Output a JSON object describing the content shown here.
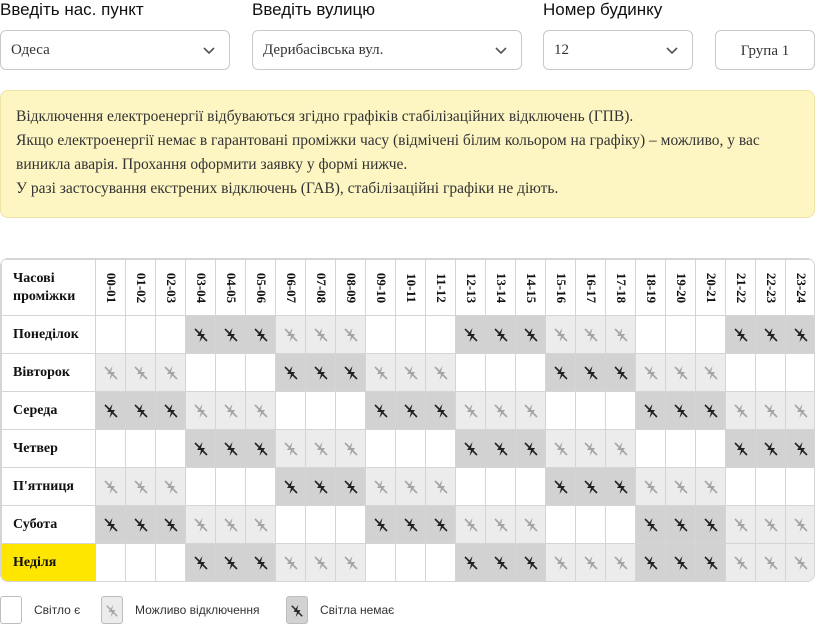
{
  "form": {
    "city_label": "Введіть нас. пункт",
    "city_value": "Одеса",
    "street_label": "Введіть вулицю",
    "street_value": "Дерибасівська вул.",
    "house_label": "Номер будинку",
    "house_value": "12",
    "group_button": "Група 1"
  },
  "notice": {
    "lines": [
      "Відключення електроенергії відбуваються згідно графіків стабілізаційних відключень (ГПВ).",
      "Якщо електроенергії немає в гарантовані проміжки часу (відмічені білим кольором на графіку) – можливо, у вас виникла аварія. Прохання оформити заявку у формі нижче.",
      "У разі застосування екстрених відключень (ГАВ), стабілізаційні графіки не діють."
    ]
  },
  "schedule": {
    "corner_label": "Часові проміжки",
    "hours": [
      "00-01",
      "01-02",
      "02-03",
      "03-04",
      "04-05",
      "05-06",
      "06-07",
      "07-08",
      "08-09",
      "09-10",
      "10-11",
      "11-12",
      "12-13",
      "13-14",
      "14-15",
      "15-16",
      "16-17",
      "17-18",
      "18-19",
      "19-20",
      "20-21",
      "21-22",
      "22-23",
      "23-24"
    ],
    "today_index": 6,
    "days": [
      {
        "name": "Понеділок",
        "states": [
          "yes",
          "yes",
          "yes",
          "no",
          "no",
          "no",
          "maybe",
          "maybe",
          "maybe",
          "yes",
          "yes",
          "yes",
          "no",
          "no",
          "no",
          "maybe",
          "maybe",
          "maybe",
          "yes",
          "yes",
          "yes",
          "no",
          "no",
          "no"
        ]
      },
      {
        "name": "Вівторок",
        "states": [
          "maybe",
          "maybe",
          "maybe",
          "yes",
          "yes",
          "yes",
          "no",
          "no",
          "no",
          "maybe",
          "maybe",
          "maybe",
          "yes",
          "yes",
          "yes",
          "no",
          "no",
          "no",
          "maybe",
          "maybe",
          "maybe",
          "yes",
          "yes",
          "yes"
        ]
      },
      {
        "name": "Середа",
        "states": [
          "no",
          "no",
          "no",
          "maybe",
          "maybe",
          "maybe",
          "yes",
          "yes",
          "yes",
          "no",
          "no",
          "no",
          "maybe",
          "maybe",
          "maybe",
          "yes",
          "yes",
          "yes",
          "no",
          "no",
          "no",
          "maybe",
          "maybe",
          "maybe"
        ]
      },
      {
        "name": "Четвер",
        "states": [
          "yes",
          "yes",
          "yes",
          "no",
          "no",
          "no",
          "maybe",
          "maybe",
          "maybe",
          "yes",
          "yes",
          "yes",
          "no",
          "no",
          "no",
          "maybe",
          "maybe",
          "maybe",
          "yes",
          "yes",
          "yes",
          "no",
          "no",
          "no"
        ]
      },
      {
        "name": "П'ятниця",
        "states": [
          "maybe",
          "maybe",
          "maybe",
          "yes",
          "yes",
          "yes",
          "no",
          "no",
          "no",
          "maybe",
          "maybe",
          "maybe",
          "yes",
          "yes",
          "yes",
          "no",
          "no",
          "no",
          "maybe",
          "maybe",
          "maybe",
          "yes",
          "yes",
          "yes"
        ]
      },
      {
        "name": "Субота",
        "states": [
          "no",
          "no",
          "no",
          "maybe",
          "maybe",
          "maybe",
          "yes",
          "yes",
          "yes",
          "no",
          "no",
          "no",
          "maybe",
          "maybe",
          "maybe",
          "yes",
          "yes",
          "yes",
          "no",
          "no",
          "no",
          "maybe",
          "maybe",
          "maybe"
        ]
      },
      {
        "name": "Неділя",
        "states": [
          "yes",
          "yes",
          "yes",
          "no",
          "no",
          "no",
          "maybe",
          "maybe",
          "maybe",
          "yes",
          "yes",
          "yes",
          "no",
          "no",
          "no",
          "maybe",
          "maybe",
          "maybe",
          "no",
          "no",
          "no",
          "maybe",
          "maybe",
          "maybe"
        ]
      }
    ]
  },
  "legend": {
    "yes_label": "Світло є",
    "maybe_label": "Можливо відключення",
    "no_label": "Світла немає"
  },
  "colors": {
    "notice_bg": "#fdf6c3",
    "today_highlight": "#ffe600",
    "maybe_bg": "#ececec",
    "no_bg": "#d2d2d2"
  },
  "icons": {
    "maybe": "lightning-off-faded-icon",
    "no": "lightning-off-icon",
    "select": "chevron-down-icon"
  }
}
